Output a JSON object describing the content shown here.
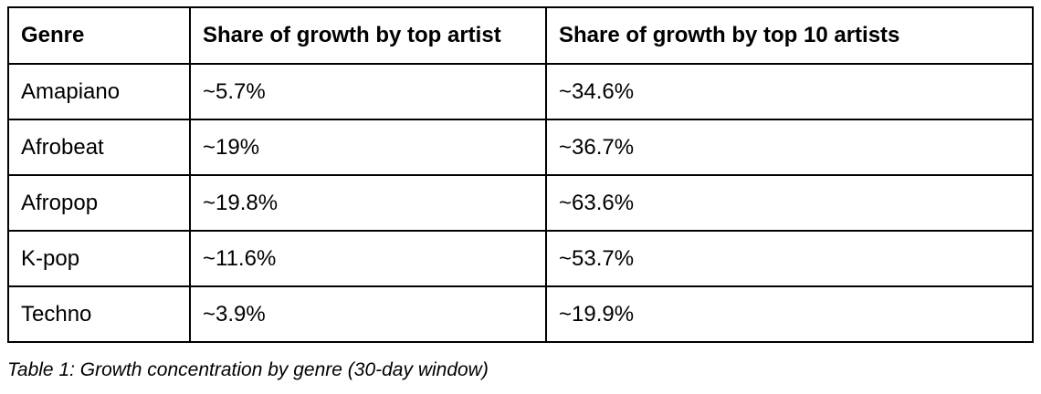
{
  "table": {
    "headers": [
      "Genre",
      "Share of growth by top artist",
      "Share of growth by top 10 artists"
    ],
    "rows": [
      [
        "Amapiano",
        "~5.7%",
        "~34.6%"
      ],
      [
        "Afrobeat",
        "~19%",
        "~36.7%"
      ],
      [
        "Afropop",
        "~19.8%",
        "~63.6%"
      ],
      [
        "K-pop",
        "~11.6%",
        "~53.7%"
      ],
      [
        "Techno",
        "~3.9%",
        "~19.9%"
      ]
    ],
    "caption": "Table 1: Growth concentration by genre (30-day window)"
  },
  "chart_data": {
    "type": "table",
    "title": "Growth concentration by genre (30-day window)",
    "columns": [
      "Genre",
      "Share of growth by top artist",
      "Share of growth by top 10 artists"
    ],
    "categories": [
      "Amapiano",
      "Afrobeat",
      "Afropop",
      "K-pop",
      "Techno"
    ],
    "series": [
      {
        "name": "Share of growth by top artist (%)",
        "values": [
          5.7,
          19,
          19.8,
          11.6,
          3.9
        ]
      },
      {
        "name": "Share of growth by top 10 artists (%)",
        "values": [
          34.6,
          36.7,
          63.6,
          53.7,
          19.9
        ]
      }
    ],
    "value_prefix": "~",
    "value_suffix": "%"
  },
  "colors": {
    "background": "#ffffff",
    "border": "#000000",
    "text": "#000000"
  }
}
